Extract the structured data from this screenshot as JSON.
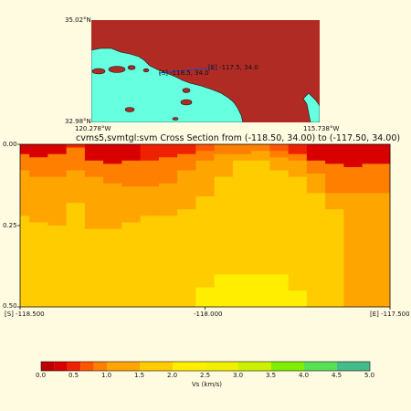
{
  "map": {
    "lat_top": "35.02°N",
    "lat_bottom": "32.98°N",
    "lon_left": "120.278°W",
    "lon_right": "115.738°W",
    "start_label": "[S] -118.5, 34.0",
    "end_label": "[E] -117.5, 34.0",
    "colors": {
      "land": "#b02b24",
      "ocean": "#66ffe0",
      "path": "#2244cc"
    }
  },
  "chart_data": {
    "type": "heatmap",
    "title": "cvms5,svmtgl:svm Cross Section from (-118.50, 34.00) to (-117.50, 34.00)",
    "x_tick_labels": [
      "[S] -118.500",
      "-118.000",
      "[E] -117.500"
    ],
    "y_tick_labels": [
      "0.00",
      "0.25",
      "0.50"
    ],
    "xlim": [
      -118.5,
      -117.5
    ],
    "ylim": [
      0.5,
      0.0
    ],
    "colorbar": {
      "label": "Vs (km/s)",
      "tick_labels": [
        "0.0",
        "0.5",
        "1.0",
        "1.5",
        "2.0",
        "2.5",
        "3.0",
        "3.5",
        "4.0",
        "4.5",
        "5.0"
      ],
      "bounds": [
        0,
        0.2,
        0.4,
        0.6,
        0.8,
        1.0,
        1.5,
        2.0,
        2.5,
        3.0,
        3.5,
        4.0,
        4.5,
        5.0
      ],
      "colors": [
        "#bb0000",
        "#d90000",
        "#ee2200",
        "#ff5500",
        "#ff7f00",
        "#ffa500",
        "#ffcc00",
        "#ffee00",
        "#f0f000",
        "#ccf000",
        "#80ee00",
        "#55e055",
        "#44bb88",
        "#3355dd"
      ]
    },
    "surface": {
      "x": [
        -118.5,
        -118.45,
        -118.4,
        -118.35,
        -118.3,
        -118.25,
        -118.2,
        -118.15,
        -118.1,
        -118.05,
        -118.0,
        -117.95,
        -117.9,
        -117.85,
        -117.8,
        -117.75,
        -117.7,
        -117.65,
        -117.6,
        -117.55,
        -117.5
      ],
      "vs_top": [
        0.2,
        0.2,
        0.3,
        0.4,
        0.2,
        0.3,
        0.3,
        0.4,
        0.4,
        0.5,
        0.6,
        0.8,
        0.8,
        0.8,
        0.6,
        0.5,
        0.3,
        0.2,
        0.2,
        0.2,
        0.2
      ]
    },
    "layers": [
      {
        "vs": 0.8,
        "depth": [
          0.03,
          0.04,
          0.03,
          0.01,
          0.05,
          0.06,
          0.05,
          0.05,
          0.04,
          0.03,
          0.02,
          0.01,
          0.01,
          0.01,
          0.02,
          0.03,
          0.05,
          0.06,
          0.07,
          0.06,
          0.06
        ]
      },
      {
        "vs": 1.0,
        "depth": [
          0.08,
          0.1,
          0.1,
          0.08,
          0.1,
          0.12,
          0.13,
          0.13,
          0.12,
          0.08,
          0.05,
          0.03,
          0.03,
          0.02,
          0.04,
          0.05,
          0.09,
          0.15,
          0.15,
          0.15,
          0.15
        ]
      },
      {
        "vs": 1.5,
        "depth": [
          0.22,
          0.24,
          0.25,
          0.18,
          0.26,
          0.26,
          0.24,
          0.22,
          0.22,
          0.2,
          0.16,
          0.1,
          0.05,
          0.05,
          0.08,
          0.1,
          0.15,
          0.2,
          0.5,
          0.5,
          0.5
        ]
      },
      {
        "vs": 2.0,
        "depth": [
          0.5,
          0.5,
          0.5,
          0.5,
          0.5,
          0.5,
          0.5,
          0.5,
          0.5,
          0.5,
          0.44,
          0.4,
          0.4,
          0.4,
          0.4,
          0.45,
          0.5,
          0.5,
          0.5,
          0.5,
          0.5
        ]
      }
    ]
  }
}
